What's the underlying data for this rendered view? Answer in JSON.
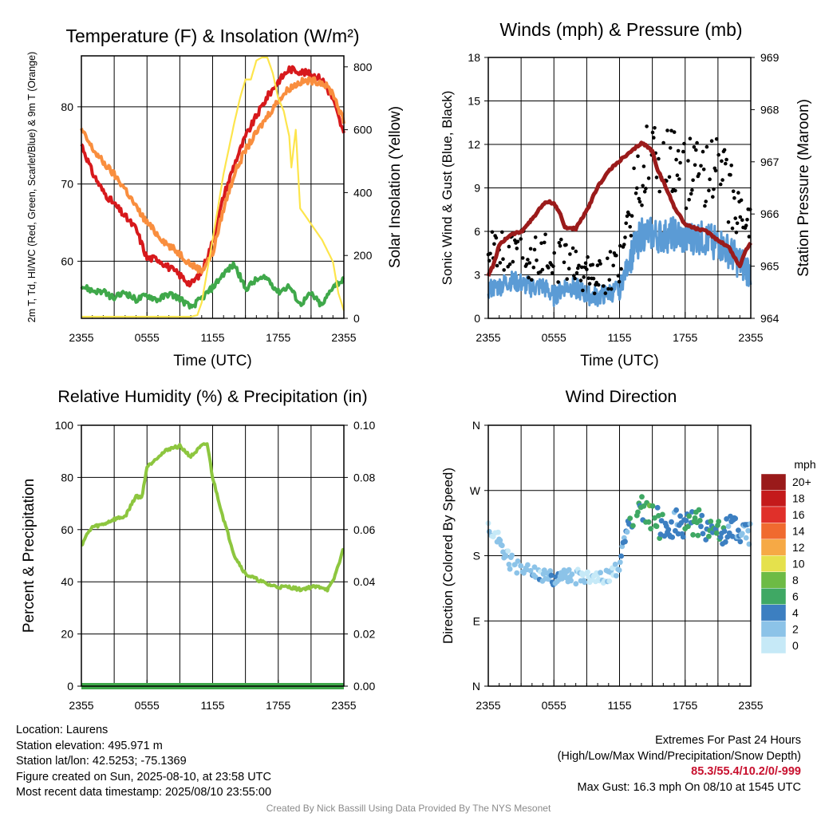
{
  "chart_data": [
    {
      "type": "line",
      "title": "Temperature (F) & Insolation (W/m²)",
      "xlabel": "Time (UTC)",
      "ylabel": "2m T, Td, HI/WC (Red, Green, Scarlet/Blue) & 9m T (Orange)",
      "y2label": "Solar Insolation (Yellow)",
      "x_ticks": [
        "2355",
        "0555",
        "1155",
        "1755",
        "2355"
      ],
      "x_range_hours": [
        0,
        24
      ],
      "ylim": [
        52.6,
        86.6
      ],
      "y_ticks": [
        60,
        70,
        80
      ],
      "y2lim": [
        0,
        835
      ],
      "y2_ticks": [
        0,
        200,
        400,
        600,
        800
      ],
      "series": [
        {
          "color": "#d7191c",
          "x": [
            0,
            1,
            2,
            3,
            4,
            5,
            6,
            7,
            8,
            9,
            10,
            11,
            12,
            13,
            14,
            15,
            16,
            17,
            18,
            19,
            20,
            21,
            22,
            23,
            24
          ],
          "values": [
            75.2,
            71.5,
            69.0,
            67.4,
            65.8,
            64.2,
            60.4,
            60.3,
            59.2,
            58.2,
            57.0,
            58.6,
            62.5,
            68.4,
            72.6,
            76.1,
            78.8,
            81.3,
            83.3,
            84.9,
            84.6,
            84.2,
            83.6,
            81.0,
            76.4
          ]
        },
        {
          "color": "#f98e3e",
          "x": [
            0,
            1,
            2,
            3,
            4,
            5,
            6,
            7,
            8,
            9,
            10,
            11,
            12,
            13,
            14,
            15,
            16,
            17,
            18,
            19,
            20,
            21,
            22,
            23,
            24
          ],
          "values": [
            77.0,
            74.6,
            72.8,
            71.2,
            69.4,
            67.0,
            65.0,
            63.4,
            62.0,
            61.0,
            59.6,
            58.8,
            61.0,
            66.8,
            71.4,
            74.4,
            76.6,
            78.8,
            80.8,
            82.4,
            83.2,
            83.4,
            83.2,
            81.8,
            78.0
          ]
        },
        {
          "color": "#3fa84a",
          "x": [
            0,
            1,
            2,
            3,
            4,
            5,
            6,
            7,
            8,
            9,
            10,
            11,
            12,
            13,
            14,
            15,
            16,
            17,
            18,
            19,
            20,
            21,
            22,
            23,
            24
          ],
          "values": [
            56.8,
            56.2,
            56.0,
            55.2,
            56.0,
            55.0,
            55.6,
            55.0,
            55.8,
            55.2,
            54.0,
            55.2,
            56.6,
            58.4,
            59.6,
            56.4,
            57.6,
            57.8,
            56.0,
            56.8,
            54.4,
            55.8,
            54.2,
            56.8,
            57.6
          ]
        },
        {
          "color": "#fde54c",
          "axis": "y2",
          "x": [
            0,
            1,
            2,
            3,
            4,
            5,
            6,
            7,
            8,
            9,
            10,
            10.6,
            11,
            12,
            13,
            14,
            14.5,
            15,
            15.5,
            16,
            16.5,
            17,
            17.5,
            18,
            18.5,
            19,
            19.2,
            19.6,
            20,
            21,
            22,
            23,
            23.5,
            24
          ],
          "values": [
            5,
            5,
            5,
            5,
            5,
            5,
            5,
            5,
            5,
            5,
            5,
            10,
            50,
            250,
            460,
            625,
            700,
            760,
            760,
            820,
            830,
            830,
            780,
            700,
            660,
            580,
            480,
            600,
            350,
            300,
            250,
            180,
            80,
            25
          ]
        }
      ]
    },
    {
      "type": "line",
      "title": "Winds (mph) & Pressure (mb)",
      "xlabel": "Time (UTC)",
      "ylabel": "Sonic Wind & Gust (Blue, Black)",
      "y2label": "Station Pressure (Maroon)",
      "x_ticks": [
        "2355",
        "0555",
        "1155",
        "1755",
        "2355"
      ],
      "x_range_hours": [
        0,
        24
      ],
      "ylim": [
        0,
        18
      ],
      "y_ticks": [
        0,
        3,
        6,
        9,
        12,
        15,
        18
      ],
      "y2lim": [
        964,
        969
      ],
      "y2_ticks": [
        964,
        965,
        966,
        967,
        968,
        969
      ],
      "series": [
        {
          "color": "#5b9bd5",
          "x": [
            0,
            1,
            2,
            3,
            4,
            5,
            6,
            7,
            8,
            9,
            10,
            11,
            12,
            13,
            14,
            15,
            16,
            17,
            18,
            19,
            20,
            21,
            22,
            23,
            24
          ],
          "values": [
            2.0,
            2.2,
            2.6,
            2.4,
            2.1,
            2.2,
            1.5,
            2.2,
            2.1,
            1.6,
            1.5,
            1.7,
            2.0,
            4.2,
            5.8,
            5.8,
            5.6,
            5.8,
            5.4,
            5.6,
            5.4,
            5.2,
            4.6,
            3.8,
            3.2
          ]
        },
        {
          "color": "#000000",
          "type": "scatter",
          "x": [
            0,
            1,
            2,
            3,
            4,
            5,
            6,
            7,
            8,
            9,
            10,
            11,
            12,
            13,
            14,
            15,
            16,
            17,
            18,
            19,
            20,
            21,
            22,
            23,
            24
          ],
          "values": [
            5.4,
            5.0,
            4.2,
            4.8,
            4.0,
            4.8,
            3.5,
            4.2,
            3.6,
            2.8,
            2.6,
            3.2,
            3.6,
            7.8,
            10.2,
            11.6,
            10.8,
            10.4,
            9.8,
            10.4,
            9.6,
            10.2,
            8.8,
            7.2,
            5.6
          ]
        },
        {
          "color": "#9b1b1b",
          "axis": "y2",
          "x": [
            0,
            0.5,
            1,
            2,
            3,
            4,
            5,
            5.5,
            6,
            6.5,
            7,
            8,
            9,
            10,
            11,
            12,
            13,
            14,
            14.5,
            15,
            15.5,
            16,
            17,
            18,
            19,
            20,
            21,
            22,
            23,
            23.5,
            24
          ],
          "values": [
            964.82,
            965.04,
            965.4,
            965.6,
            965.66,
            965.9,
            966.18,
            966.24,
            966.2,
            966.04,
            965.74,
            965.72,
            966.06,
            966.52,
            966.82,
            967.02,
            967.18,
            967.36,
            967.3,
            967.2,
            966.84,
            966.62,
            966.14,
            965.8,
            965.72,
            965.66,
            965.5,
            965.36,
            964.99,
            965.3,
            965.44
          ]
        }
      ]
    },
    {
      "type": "line",
      "title": "Relative Humidity (%) & Precipitation (in)",
      "ylabel": "Percent & Precipitation",
      "x_ticks": [
        "2355",
        "0555",
        "1155",
        "1755",
        "2355"
      ],
      "x_range_hours": [
        0,
        24
      ],
      "ylim": [
        0,
        100
      ],
      "y_ticks": [
        0,
        20,
        40,
        60,
        80,
        100
      ],
      "y2lim": [
        0,
        0.1
      ],
      "y2_ticks": [
        "0.00",
        "0.02",
        "0.04",
        "0.06",
        "0.08",
        "0.10"
      ],
      "series": [
        {
          "color": "#8dc63f",
          "x": [
            0,
            0.5,
            1,
            2,
            3,
            4,
            5,
            5.5,
            6,
            7,
            8,
            9,
            10,
            11,
            11.5,
            12,
            13,
            14,
            15,
            16,
            16.5,
            17,
            18,
            19,
            20,
            21,
            22,
            22.5,
            23,
            24
          ],
          "values": [
            54,
            58,
            61,
            62,
            64,
            65,
            73,
            72,
            84,
            88,
            91,
            92,
            88,
            92,
            93,
            80,
            64,
            50,
            43,
            41,
            40,
            39,
            38,
            38,
            37,
            38,
            38,
            37,
            40,
            53
          ]
        },
        {
          "color": "#3fa84a",
          "axis": "y2",
          "x": [
            0,
            24
          ],
          "values": [
            0,
            0
          ]
        }
      ]
    },
    {
      "type": "scatter",
      "title": "Wind Direction",
      "ylabel": "Direction (Colored By Speed)",
      "x_ticks": [
        "2355",
        "0555",
        "1155",
        "1755",
        "2355"
      ],
      "x_range_hours": [
        0,
        24
      ],
      "ylim_degrees": [
        0,
        360
      ],
      "y_ticks": [
        "N",
        "E",
        "S",
        "W",
        "N"
      ],
      "colorbar_title": "mph",
      "colorbar_labels": [
        "0",
        "2",
        "4",
        "6",
        "8",
        "10",
        "12",
        "14",
        "16",
        "18",
        "20+"
      ],
      "colorbar_colors": [
        "#c6e9f7",
        "#8cc3e8",
        "#3c7fc1",
        "#3fa864",
        "#6dbb45",
        "#e5e14c",
        "#f6a945",
        "#f06a2f",
        "#e0302a",
        "#c41a1b",
        "#9a1a1a"
      ],
      "series": [
        {
          "x": [
            0,
            1,
            2,
            3,
            4,
            5,
            6,
            7,
            8,
            9,
            10,
            11,
            12,
            13,
            14,
            15,
            16,
            17,
            18,
            19,
            20,
            21,
            22,
            23,
            24
          ],
          "values": [
            222,
            200,
            172,
            160,
            155,
            152,
            148,
            150,
            152,
            150,
            148,
            155,
            165,
            236,
            243,
            232,
            220,
            225,
            215,
            230,
            218,
            210,
            222,
            215,
            210
          ],
          "speeds": [
            1.8,
            2.2,
            2.6,
            3.2,
            3.6,
            2.8,
            3.6,
            2.2,
            2.4,
            2.0,
            1.2,
            1.8,
            2.4,
            6.2,
            6.6,
            7.2,
            5.2,
            4.6,
            5.6,
            6.4,
            5.4,
            6.6,
            4.2,
            4.0,
            3.2
          ]
        }
      ]
    }
  ],
  "info": {
    "location": "Location: Laurens",
    "elevation": "Station elevation: 495.971 m",
    "latlon": "Station lat/lon: 42.5253; -75.1369",
    "created": "Figure created on Sun, 2025-08-10, at 23:58 UTC",
    "recent": "Most recent data timestamp: 2025/08/10 23:55:00"
  },
  "extremes": {
    "title": "Extremes For Past 24 Hours",
    "subtitle": "(High/Low/Max Wind/Precipitation/Snow Depth)",
    "values": "85.3/55.4/10.2/0/-999",
    "gust": "Max Gust: 16.3 mph On 08/10 at 1545 UTC"
  },
  "credit": "Created By Nick Bassill Using Data Provided By The NYS Mesonet"
}
